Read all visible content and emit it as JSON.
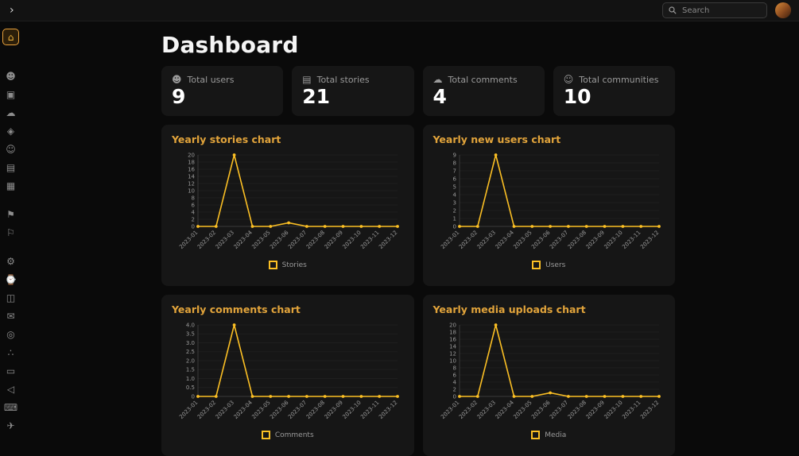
{
  "topbar": {
    "search_placeholder": "Search"
  },
  "page": {
    "title": "Dashboard"
  },
  "sidebar": {
    "items": [
      {
        "icon": "home-icon",
        "glyph": "⌂",
        "active": true
      },
      {
        "icon": "people-icon",
        "glyph": "☻",
        "gap_before": true
      },
      {
        "icon": "box-icon",
        "glyph": "▣"
      },
      {
        "icon": "chat-icon",
        "glyph": "☁"
      },
      {
        "icon": "tag-icon",
        "glyph": "◈"
      },
      {
        "icon": "users-icon",
        "glyph": "☺"
      },
      {
        "icon": "file-icon",
        "glyph": "▤"
      },
      {
        "icon": "package-icon",
        "glyph": "▦"
      },
      {
        "icon": "flag-icon",
        "glyph": "⚑",
        "gap_before": true
      },
      {
        "icon": "flag2-icon",
        "glyph": "⚐"
      },
      {
        "icon": "gear-icon",
        "glyph": "⚙",
        "gap_before": true
      },
      {
        "icon": "clock-icon",
        "glyph": "⌚"
      },
      {
        "icon": "map-icon",
        "glyph": "◫"
      },
      {
        "icon": "mail-icon",
        "glyph": "✉"
      },
      {
        "icon": "pin-icon",
        "glyph": "◎"
      },
      {
        "icon": "share-icon",
        "glyph": "∴"
      },
      {
        "icon": "briefcase-icon",
        "glyph": "▭"
      },
      {
        "icon": "megaphone-icon",
        "glyph": "◁"
      },
      {
        "icon": "code-icon",
        "glyph": "⌨"
      },
      {
        "icon": "rocket-icon",
        "glyph": "✈"
      }
    ]
  },
  "stats": [
    {
      "icon": "users-stat-icon",
      "glyph": "☻",
      "label": "Total users",
      "value": "9"
    },
    {
      "icon": "stories-stat-icon",
      "glyph": "▤",
      "label": "Total stories",
      "value": "21"
    },
    {
      "icon": "comments-stat-icon",
      "glyph": "☁",
      "label": "Total comments",
      "value": "4"
    },
    {
      "icon": "communities-stat-icon",
      "glyph": "☺",
      "label": "Total communities",
      "value": "10"
    }
  ],
  "chart_colors": {
    "line": "#fbbf24",
    "grid": "#1e1e1e",
    "axis": "#3a3a3a",
    "tick_text": "#9a9a9a"
  },
  "chart_data": [
    {
      "type": "line",
      "title": "Yearly stories chart",
      "x": [
        "2023-01",
        "2023-02",
        "2023-03",
        "2023-04",
        "2023-05",
        "2023-06",
        "2023-07",
        "2023-08",
        "2023-09",
        "2023-10",
        "2023-11",
        "2023-12"
      ],
      "series": [
        {
          "name": "Stories",
          "values": [
            0,
            0,
            20,
            0,
            0,
            1,
            0,
            0,
            0,
            0,
            0,
            0
          ]
        }
      ],
      "yticks": [
        "0",
        "2",
        "4",
        "6",
        "8",
        "10",
        "12",
        "14",
        "16",
        "18",
        "20"
      ],
      "ylim": [
        0,
        20
      ],
      "legend_position": "bottom"
    },
    {
      "type": "line",
      "title": "Yearly new users chart",
      "x": [
        "2023-01",
        "2023-02",
        "2023-03",
        "2023-04",
        "2023-05",
        "2023-06",
        "2023-07",
        "2023-08",
        "2023-09",
        "2023-10",
        "2023-11",
        "2023-12"
      ],
      "series": [
        {
          "name": "Users",
          "values": [
            0,
            0,
            9,
            0,
            0,
            0,
            0,
            0,
            0,
            0,
            0,
            0
          ]
        }
      ],
      "yticks": [
        "0",
        "1",
        "2",
        "3",
        "4",
        "5",
        "6",
        "7",
        "8",
        "9"
      ],
      "ylim": [
        0,
        9
      ],
      "legend_position": "bottom"
    },
    {
      "type": "line",
      "title": "Yearly comments chart",
      "x": [
        "2023-01",
        "2023-02",
        "2023-03",
        "2023-04",
        "2023-05",
        "2023-06",
        "2023-07",
        "2023-08",
        "2023-09",
        "2023-10",
        "2023-11",
        "2023-12"
      ],
      "series": [
        {
          "name": "Comments",
          "values": [
            0,
            0,
            4,
            0,
            0,
            0,
            0,
            0,
            0,
            0,
            0,
            0
          ]
        }
      ],
      "yticks": [
        "0",
        "0.5",
        "1.0",
        "1.5",
        "2.0",
        "2.5",
        "3.0",
        "3.5",
        "4.0"
      ],
      "ylim": [
        0,
        4
      ],
      "legend_position": "bottom"
    },
    {
      "type": "line",
      "title": "Yearly media uploads chart",
      "x": [
        "2023-01",
        "2023-02",
        "2023-03",
        "2023-04",
        "2023-05",
        "2023-06",
        "2023-07",
        "2023-08",
        "2023-09",
        "2023-10",
        "2023-11",
        "2023-12"
      ],
      "series": [
        {
          "name": "Media",
          "values": [
            0,
            0,
            20,
            0,
            0,
            1,
            0,
            0,
            0,
            0,
            0,
            0
          ]
        }
      ],
      "yticks": [
        "0",
        "2",
        "4",
        "6",
        "8",
        "10",
        "12",
        "14",
        "16",
        "18",
        "20"
      ],
      "ylim": [
        0,
        20
      ],
      "legend_position": "bottom"
    }
  ]
}
